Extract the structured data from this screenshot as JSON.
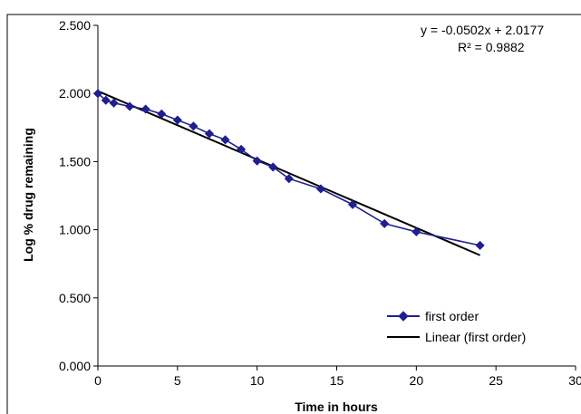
{
  "chart_data": {
    "type": "scatter",
    "xlabel": "Time in hours",
    "ylabel": "Log % drug remaining",
    "xlim": [
      0,
      30
    ],
    "ylim": [
      0,
      2.5
    ],
    "x_ticks": [
      0,
      5,
      10,
      15,
      20,
      25,
      30
    ],
    "x_tick_labels": [
      "0",
      "5",
      "10",
      "15",
      "20",
      "25",
      "30"
    ],
    "y_ticks": [
      0,
      0.5,
      1.0,
      1.5,
      2.0,
      2.5
    ],
    "y_tick_labels": [
      "0.000",
      "0.500",
      "1.000",
      "1.500",
      "2.000",
      "2.500"
    ],
    "grid": false,
    "legend_position": "bottom-right",
    "series": [
      {
        "name": "first order",
        "kind": "line-with-diamond-markers",
        "color": "#1f1f8f",
        "x": [
          0,
          0.5,
          1,
          2,
          3,
          4,
          5,
          6,
          7,
          8,
          9,
          10,
          11,
          12,
          14,
          16,
          18,
          20,
          24
        ],
        "y": [
          2.0,
          1.95,
          1.93,
          1.905,
          1.885,
          1.85,
          1.805,
          1.76,
          1.705,
          1.66,
          1.59,
          1.505,
          1.46,
          1.375,
          1.3,
          1.185,
          1.045,
          0.985,
          0.885
        ]
      },
      {
        "name": "Linear (first order)",
        "kind": "trendline",
        "color": "#000000",
        "slope": -0.0502,
        "intercept": 2.0177,
        "x_range": [
          0,
          24
        ]
      }
    ],
    "annotations": {
      "equation": "y = -0.0502x + 2.0177",
      "r_squared": "R² = 0.9882"
    }
  }
}
